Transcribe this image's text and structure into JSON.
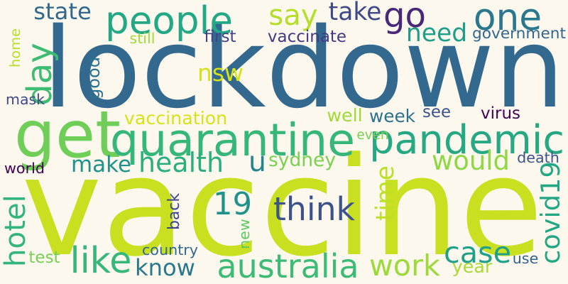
{
  "words": [
    {
      "text": "lockdown",
      "color": "#33698e",
      "vertical": false
    },
    {
      "text": "vaccine",
      "color": "#c8e020",
      "vertical": false
    },
    {
      "text": "get",
      "color": "#6ece58",
      "vertical": false
    },
    {
      "text": "quarantine",
      "color": "#35b779",
      "vertical": false
    },
    {
      "text": "pandemic",
      "color": "#26a883",
      "vertical": false
    },
    {
      "text": "people",
      "color": "#22a884",
      "vertical": false
    },
    {
      "text": "go",
      "color": "#482878",
      "vertical": false
    },
    {
      "text": "one",
      "color": "#2a788e",
      "vertical": false
    },
    {
      "text": "say",
      "color": "#b5de2b",
      "vertical": false
    },
    {
      "text": "take",
      "color": "#3e4989",
      "vertical": false
    },
    {
      "text": "state",
      "color": "#31688e",
      "vertical": false
    },
    {
      "text": "day",
      "color": "#3fbc73",
      "vertical": true
    },
    {
      "text": "good",
      "color": "#2c728e",
      "vertical": true
    },
    {
      "text": "need",
      "color": "#1f9e89",
      "vertical": false
    },
    {
      "text": "government",
      "color": "#30678d",
      "vertical": false
    },
    {
      "text": "still",
      "color": "#a0da39",
      "vertical": false
    },
    {
      "text": "first",
      "color": "#414487",
      "vertical": false
    },
    {
      "text": "vaccinate",
      "color": "#443983",
      "vertical": false
    },
    {
      "text": "home",
      "color": "#b8de29",
      "vertical": true
    },
    {
      "text": "nsw",
      "color": "#d8e219",
      "vertical": false
    },
    {
      "text": "mask",
      "color": "#3e4a89",
      "vertical": false
    },
    {
      "text": "vaccination",
      "color": "#d8e219",
      "vertical": false
    },
    {
      "text": "well",
      "color": "#a0da39",
      "vertical": false
    },
    {
      "text": "week",
      "color": "#2d718e",
      "vertical": false
    },
    {
      "text": "see",
      "color": "#3b528b",
      "vertical": false
    },
    {
      "text": "virus",
      "color": "#440154",
      "vertical": false
    },
    {
      "text": "even",
      "color": "#7ad151",
      "vertical": false
    },
    {
      "text": "make",
      "color": "#21918c",
      "vertical": false
    },
    {
      "text": "health",
      "color": "#29af7f",
      "vertical": false
    },
    {
      "text": "u",
      "color": "#25848e",
      "vertical": false
    },
    {
      "text": "sydney",
      "color": "#7ad151",
      "vertical": false
    },
    {
      "text": "would",
      "color": "#8fd744",
      "vertical": false
    },
    {
      "text": "death",
      "color": "#3b528b",
      "vertical": false
    },
    {
      "text": "world",
      "color": "#440154",
      "vertical": false
    },
    {
      "text": "covid19",
      "color": "#22a785",
      "vertical": true
    },
    {
      "text": "time",
      "color": "#bddf26",
      "vertical": true
    },
    {
      "text": "19",
      "color": "#21918c",
      "vertical": false
    },
    {
      "text": "think",
      "color": "#3b528b",
      "vertical": false
    },
    {
      "text": "hotel",
      "color": "#31b57b",
      "vertical": true
    },
    {
      "text": "back",
      "color": "#3f4889",
      "vertical": true
    },
    {
      "text": "new",
      "color": "#5ec962",
      "vertical": true
    },
    {
      "text": "country",
      "color": "#31688e",
      "vertical": false
    },
    {
      "text": "like",
      "color": "#35b779",
      "vertical": false
    },
    {
      "text": "know",
      "color": "#2a788e",
      "vertical": false
    },
    {
      "text": "australia",
      "color": "#3bbb75",
      "vertical": false
    },
    {
      "text": "work",
      "color": "#9dd93b",
      "vertical": false
    },
    {
      "text": "case",
      "color": "#1fa088",
      "vertical": false
    },
    {
      "text": "year",
      "color": "#a8db34",
      "vertical": false
    },
    {
      "text": "use",
      "color": "#33638d",
      "vertical": false
    },
    {
      "text": "test",
      "color": "#75d054",
      "vertical": false
    }
  ]
}
